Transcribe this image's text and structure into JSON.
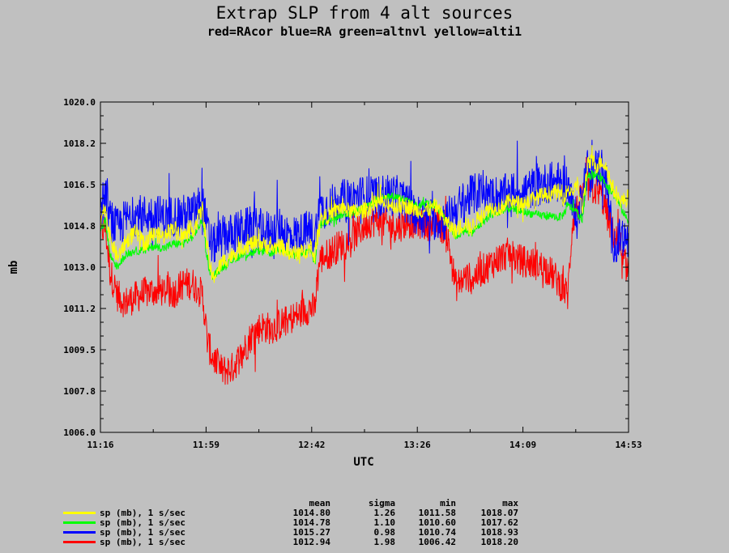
{
  "chart_data": {
    "type": "line",
    "title": "Extrap SLP from 4 alt sources",
    "subtitle": "red=RAcor blue=RA green=altnvl yellow=alti1",
    "xlabel": "UTC",
    "ylabel": "mb",
    "x_ticks": [
      "11:16",
      "11:59",
      "12:42",
      "13:26",
      "14:09",
      "14:53"
    ],
    "y_ticks": [
      "1006.0",
      "1007.8",
      "1009.5",
      "1011.2",
      "1013.0",
      "1014.8",
      "1016.5",
      "1018.2",
      "1020.0"
    ],
    "ylim": [
      1006.0,
      1020.0
    ],
    "xlim_minutes": [
      676,
      893
    ],
    "grid": false,
    "legend_placement": "bottom",
    "stats_headers": [
      "mean",
      "sigma",
      "min",
      "max"
    ],
    "series": [
      {
        "name": "sp (mb), 1 s/sec",
        "color": "#ffff00",
        "mean": "1014.80",
        "sigma": "1.26",
        "min": "1011.58",
        "max": "1018.07",
        "noise": 0.35,
        "x": [
          676,
          678,
          680,
          683,
          686,
          690,
          694,
          698,
          702,
          706,
          710,
          714,
          718,
          720,
          722,
          726,
          730,
          734,
          738,
          742,
          746,
          750,
          754,
          758,
          762,
          764,
          766,
          770,
          774,
          778,
          782,
          786,
          790,
          794,
          798,
          802,
          806,
          810,
          814,
          818,
          822,
          826,
          828,
          832,
          836,
          840,
          844,
          848,
          852,
          856,
          860,
          864,
          866,
          868,
          870,
          872,
          874,
          876,
          878,
          880,
          882,
          884,
          886,
          888,
          890,
          893
        ],
        "y": [
          1015.0,
          1015.6,
          1014.2,
          1013.4,
          1014.0,
          1014.5,
          1014.0,
          1014.4,
          1014.3,
          1014.7,
          1014.3,
          1014.6,
          1015.5,
          1013.7,
          1012.5,
          1013.2,
          1013.5,
          1013.8,
          1014.0,
          1014.0,
          1013.8,
          1013.9,
          1013.6,
          1013.6,
          1013.8,
          1013.5,
          1015.0,
          1015.2,
          1015.5,
          1015.4,
          1015.3,
          1015.5,
          1015.8,
          1015.7,
          1015.6,
          1015.6,
          1015.4,
          1015.4,
          1015.6,
          1014.9,
          1014.5,
          1014.9,
          1014.6,
          1015.2,
          1015.5,
          1015.5,
          1015.8,
          1015.7,
          1015.8,
          1016.0,
          1016.1,
          1016.2,
          1015.9,
          1016.3,
          1016.2,
          1016.5,
          1015.4,
          1017.3,
          1017.5,
          1017.3,
          1017.5,
          1017.2,
          1016.5,
          1016.0,
          1015.8,
          1015.9
        ]
      },
      {
        "name": "sp (mb), 1 s/sec",
        "color": "#00ff00",
        "mean": "1014.78",
        "sigma": "1.10",
        "min": "1010.60",
        "max": "1017.62",
        "noise": 0.18,
        "x": [
          676,
          678,
          680,
          683,
          686,
          690,
          694,
          698,
          702,
          706,
          710,
          714,
          718,
          720,
          722,
          726,
          730,
          734,
          738,
          742,
          746,
          750,
          754,
          758,
          762,
          764,
          766,
          770,
          774,
          778,
          782,
          786,
          790,
          794,
          798,
          802,
          806,
          810,
          814,
          818,
          822,
          826,
          828,
          832,
          836,
          840,
          844,
          848,
          852,
          856,
          860,
          864,
          866,
          868,
          870,
          872,
          874,
          876,
          878,
          880,
          882,
          884,
          886,
          888,
          890,
          893
        ],
        "y": [
          1014.4,
          1015.0,
          1013.5,
          1013.0,
          1013.5,
          1013.7,
          1013.7,
          1013.9,
          1013.8,
          1014.0,
          1014.0,
          1014.3,
          1015.0,
          1013.2,
          1012.6,
          1013.0,
          1013.3,
          1013.5,
          1013.6,
          1013.7,
          1013.6,
          1013.8,
          1013.5,
          1013.5,
          1013.7,
          1013.2,
          1014.8,
          1015.0,
          1015.2,
          1015.3,
          1015.4,
          1015.6,
          1015.9,
          1016.0,
          1016.0,
          1015.8,
          1015.6,
          1015.7,
          1015.6,
          1015.0,
          1014.3,
          1014.6,
          1014.4,
          1014.8,
          1015.2,
          1015.3,
          1015.5,
          1015.4,
          1015.3,
          1015.2,
          1015.2,
          1015.1,
          1015.2,
          1015.6,
          1015.5,
          1015.3,
          1015.0,
          1016.8,
          1016.9,
          1016.9,
          1016.8,
          1016.5,
          1016.2,
          1015.9,
          1015.5,
          1014.9
        ]
      },
      {
        "name": "sp (mb), 1 s/sec",
        "color": "#0000ff",
        "mean": "1015.27",
        "sigma": "0.98",
        "min": "1010.74",
        "max": "1018.93",
        "noise": 0.9,
        "x": [
          676,
          678,
          680,
          683,
          686,
          690,
          694,
          698,
          702,
          706,
          710,
          714,
          718,
          720,
          722,
          726,
          730,
          734,
          738,
          742,
          746,
          750,
          754,
          758,
          762,
          764,
          766,
          770,
          774,
          778,
          782,
          786,
          790,
          794,
          798,
          802,
          806,
          810,
          814,
          818,
          822,
          826,
          828,
          832,
          836,
          840,
          844,
          848,
          852,
          856,
          860,
          864,
          866,
          868,
          870,
          872,
          874,
          876,
          878,
          880,
          882,
          884,
          886,
          888,
          890,
          893
        ],
        "y": [
          1015.5,
          1016.0,
          1015.0,
          1014.6,
          1015.0,
          1015.2,
          1015.2,
          1015.3,
          1015.1,
          1015.2,
          1015.2,
          1015.3,
          1015.8,
          1014.5,
          1013.9,
          1014.3,
          1014.4,
          1014.6,
          1014.7,
          1014.6,
          1014.5,
          1014.7,
          1014.3,
          1014.4,
          1014.6,
          1014.3,
          1015.4,
          1015.6,
          1015.8,
          1015.9,
          1016.0,
          1016.0,
          1016.0,
          1016.1,
          1016.0,
          1015.7,
          1015.2,
          1015.1,
          1015.0,
          1015.0,
          1015.5,
          1015.8,
          1016.0,
          1016.2,
          1016.1,
          1016.0,
          1016.1,
          1016.2,
          1016.3,
          1016.4,
          1016.6,
          1016.6,
          1016.4,
          1016.6,
          1015.5,
          1015.0,
          1016.2,
          1017.2,
          1017.0,
          1017.2,
          1017.3,
          1016.5,
          1014.4,
          1013.8,
          1014.4,
          1014.0
        ]
      },
      {
        "name": "sp (mb), 1 s/sec",
        "color": "#ff0000",
        "mean": "1012.94",
        "sigma": "1.98",
        "min": "1006.42",
        "max": "1018.20",
        "noise": 0.7,
        "x": [
          676,
          678,
          680,
          683,
          686,
          690,
          694,
          698,
          702,
          706,
          710,
          714,
          718,
          720,
          722,
          726,
          730,
          734,
          738,
          742,
          746,
          750,
          754,
          758,
          762,
          764,
          766,
          770,
          774,
          778,
          782,
          786,
          790,
          794,
          798,
          802,
          806,
          810,
          814,
          818,
          822,
          826,
          828,
          832,
          836,
          840,
          844,
          848,
          852,
          856,
          860,
          864,
          866,
          868,
          870,
          872,
          874,
          876,
          878,
          880,
          882,
          884,
          886,
          888,
          890,
          893
        ],
        "y": [
          1014.5,
          1014.7,
          1012.8,
          1011.8,
          1011.5,
          1011.7,
          1011.9,
          1012.0,
          1012.0,
          1011.9,
          1012.3,
          1012.3,
          1011.8,
          1009.8,
          1009.2,
          1008.6,
          1008.7,
          1009.3,
          1010.1,
          1010.5,
          1010.4,
          1010.6,
          1010.8,
          1011.0,
          1011.3,
          1011.2,
          1013.3,
          1013.6,
          1013.9,
          1014.1,
          1014.5,
          1014.9,
          1015.0,
          1014.8,
          1014.7,
          1014.9,
          1014.9,
          1014.8,
          1014.8,
          1014.6,
          1012.2,
          1012.6,
          1012.5,
          1012.8,
          1013.1,
          1013.4,
          1013.6,
          1013.3,
          1013.2,
          1013.1,
          1012.9,
          1012.4,
          1012.1,
          1011.8,
          1015.0,
          1015.5,
          1016.0,
          1016.4,
          1016.4,
          1016.2,
          1016.0,
          1015.3,
          1014.6,
          1014.2,
          1013.2,
          1013.0
        ]
      }
    ]
  }
}
